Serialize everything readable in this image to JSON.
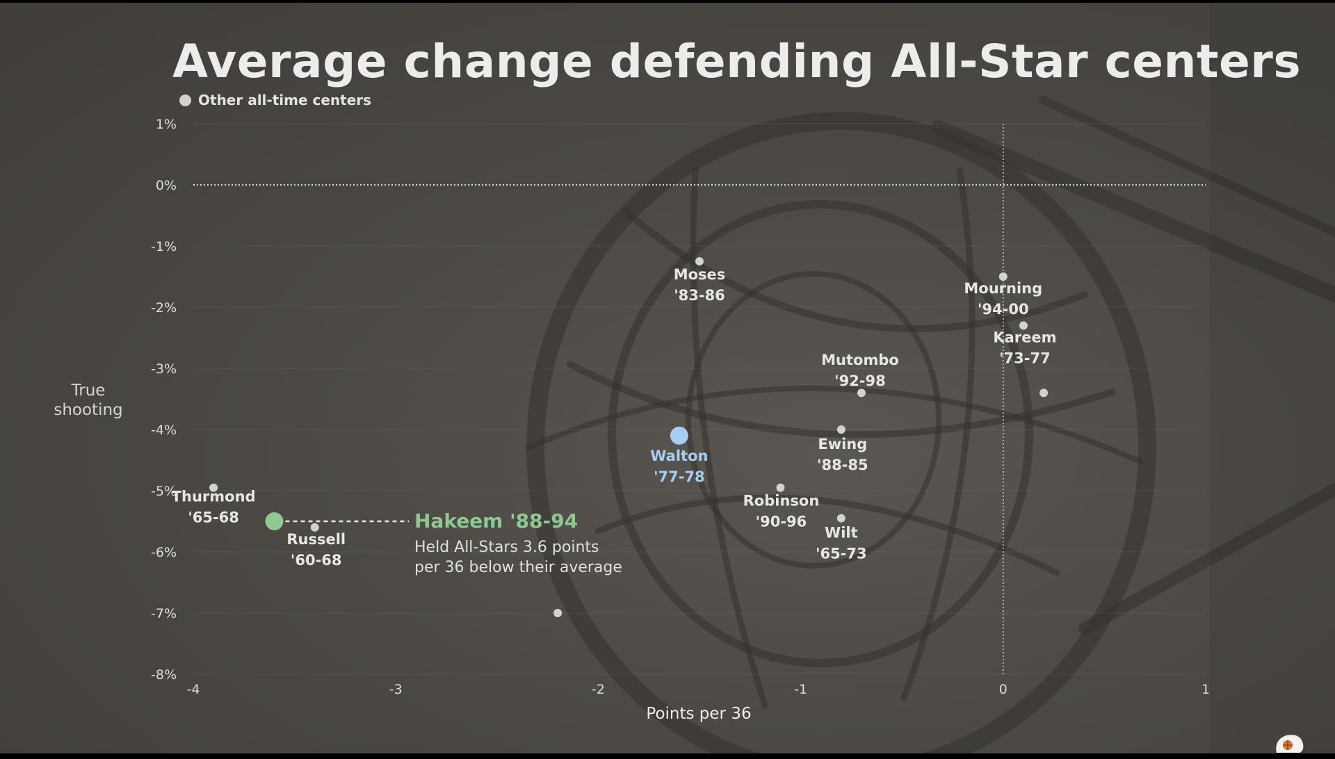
{
  "title": "Average change defending All-Star centers",
  "legend": {
    "label": "Other all-time centers"
  },
  "colors": {
    "background": "#4a4743",
    "text": "#e6e6e4",
    "other_point": "#d2d2d0",
    "hakeem": "#8fc893",
    "walton": "#a8cdf0"
  },
  "chart_data": {
    "type": "scatter",
    "title": "Average change defending All-Star centers",
    "xlabel": "Points per 36",
    "ylabel": "True shooting",
    "xlim": [
      -4,
      1
    ],
    "ylim": [
      -8,
      1
    ],
    "xticks": [
      "-4",
      "-3",
      "-2",
      "-1",
      "0",
      "1"
    ],
    "yticks": [
      "1%",
      "0%",
      "-1%",
      "-2%",
      "-3%",
      "-4%",
      "-5%",
      "-6%",
      "-7%",
      "-8%"
    ],
    "grid": true,
    "legend_position": "top-left",
    "series": [
      {
        "name": "Other all-time centers",
        "points": [
          {
            "label": "Thurmond",
            "years": "'65-68",
            "x": -3.9,
            "y": -4.95
          },
          {
            "label": "Russell",
            "years": "'60-68",
            "x": -3.4,
            "y": -5.6
          },
          {
            "label": "Moses",
            "years": "'83-86",
            "x": -1.5,
            "y": -1.25
          },
          {
            "label": "Robinson",
            "years": "'90-96",
            "x": -1.1,
            "y": -4.95
          },
          {
            "label": "Mutombo",
            "years": "'92-98",
            "x": -0.7,
            "y": -3.4
          },
          {
            "label": "Ewing",
            "years": "'88-85",
            "x": -0.8,
            "y": -4.0
          },
          {
            "label": "Wilt",
            "years": "'65-73",
            "x": -0.8,
            "y": -5.45
          },
          {
            "label": "Mourning",
            "years": "'94-00",
            "x": 0.0,
            "y": -1.5
          },
          {
            "label": "Kareem",
            "years": "'73-77",
            "x": 0.1,
            "y": -2.3
          },
          {
            "label": "",
            "years": "",
            "x": 0.2,
            "y": -3.4
          },
          {
            "label": "",
            "years": "",
            "x": -2.2,
            "y": -7.0
          }
        ]
      },
      {
        "name": "Walton",
        "points": [
          {
            "label": "Walton",
            "years": "'77-78",
            "x": -1.6,
            "y": -4.1
          }
        ]
      },
      {
        "name": "Hakeem",
        "points": [
          {
            "label": "Hakeem '88-94",
            "years": "",
            "x": -3.6,
            "y": -5.5
          }
        ]
      }
    ],
    "annotations": [
      {
        "title": "Hakeem '88-94",
        "text_lines": [
          "Held All-Stars 3.6 points",
          "per 36 below their average"
        ]
      }
    ]
  }
}
